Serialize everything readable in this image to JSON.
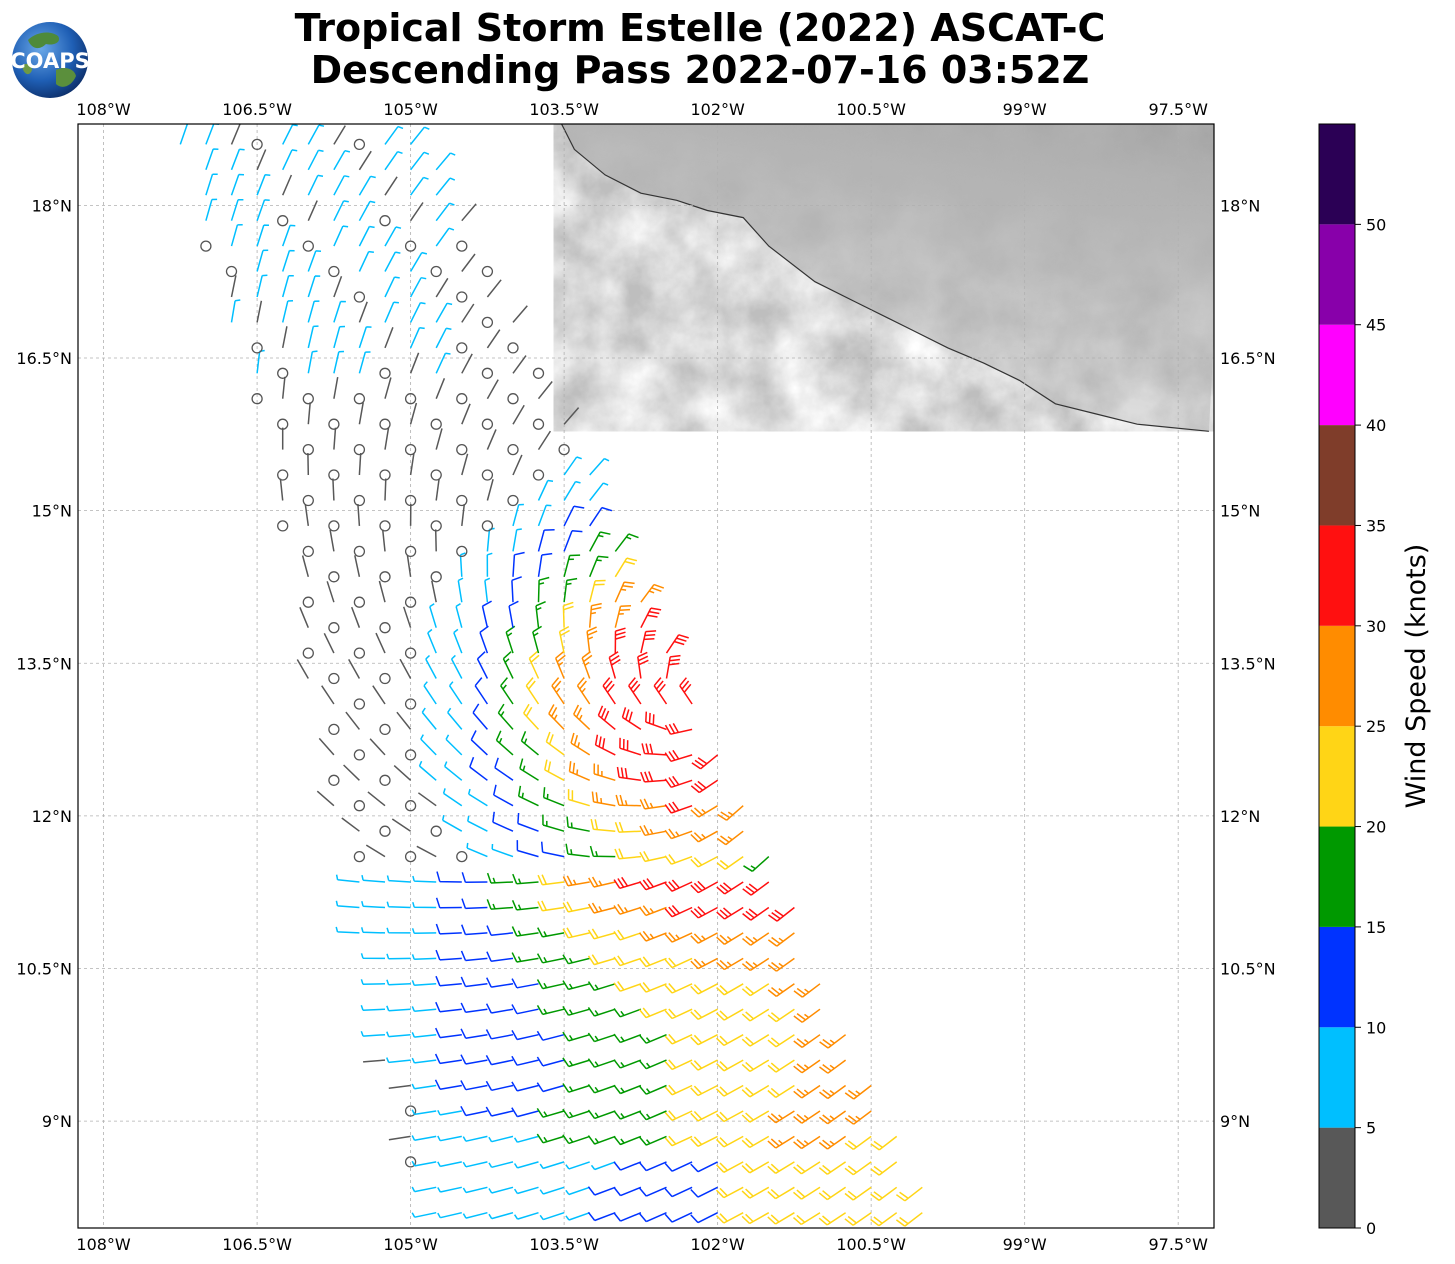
{
  "title": {
    "line1": "Tropical Storm Estelle (2022) ASCAT-C",
    "line2": "Descending Pass 2022-07-16 03:52Z"
  },
  "logo": {
    "text": "COAPS",
    "icon": "globe-icon"
  },
  "map": {
    "lon_range": [
      -108.25,
      -97.15
    ],
    "lat_range": [
      7.95,
      18.8
    ],
    "lon_ticks": [
      -108,
      -106.5,
      -105,
      -103.5,
      -102,
      -100.5,
      -99,
      -97.5
    ],
    "lon_tick_labels": [
      "108°W",
      "106.5°W",
      "105°W",
      "103.5°W",
      "102°W",
      "100.5°W",
      "99°W",
      "97.5°W"
    ],
    "lat_ticks": [
      9,
      10.5,
      12,
      13.5,
      15,
      16.5,
      18
    ],
    "lat_tick_labels": [
      "9°N",
      "10.5°N",
      "12°N",
      "13.5°N",
      "15°N",
      "16.5°N",
      "18°N"
    ],
    "grid": true,
    "land_color_low": "#f2f2f2",
    "land_color_high": "#7a7a7a",
    "storm_center": {
      "lon": -102.2,
      "lat": 13.1
    },
    "swath_corners": [
      [
        -107.4,
        18.85
      ],
      [
        -104.9,
        18.85
      ],
      [
        -99.75,
        7.95
      ],
      [
        -104.9,
        7.95
      ],
      [
        -105.6,
        11.1
      ],
      [
        -106.5,
        16.0
      ]
    ]
  },
  "colorbar": {
    "label": "Wind Speed (knots)",
    "bounds": [
      0,
      5,
      10,
      15,
      20,
      25,
      30,
      35,
      40,
      45,
      50,
      55
    ],
    "tick_values": [
      0,
      5,
      10,
      15,
      20,
      25,
      30,
      35,
      40,
      45,
      50
    ],
    "tick_labels": [
      "0",
      "5",
      "10",
      "15",
      "20",
      "25",
      "30",
      "35",
      "40",
      "45",
      "50"
    ],
    "colors": [
      "#585858",
      "#00bfff",
      "#0033ff",
      "#009900",
      "#ffd516",
      "#ff8c00",
      "#ff1010",
      "#7f3d2a",
      "#ff00ff",
      "#8800aa",
      "#2b0055"
    ]
  }
}
